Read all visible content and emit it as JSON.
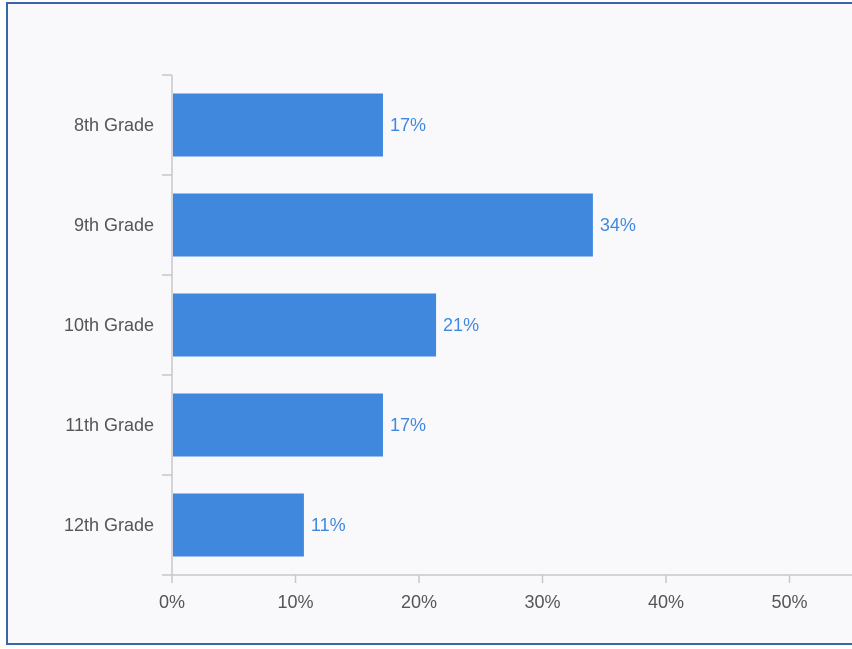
{
  "chart_data": {
    "type": "bar",
    "orientation": "horizontal",
    "categories": [
      "8th Grade",
      "9th Grade",
      "10th Grade",
      "11th Grade",
      "12th Grade"
    ],
    "values": [
      17,
      34,
      21.3,
      17,
      10.6
    ],
    "data_labels": [
      "17%",
      "34%",
      "21%",
      "17%",
      "11%"
    ],
    "x_ticks": [
      0,
      10,
      20,
      30,
      40,
      50
    ],
    "x_tick_labels": [
      "0%",
      "10%",
      "20%",
      "30%",
      "40%",
      "50%"
    ],
    "xlim": [
      0,
      55
    ],
    "title": "",
    "xlabel": "",
    "ylabel": "",
    "grid": false,
    "colors": {
      "bar": "#3f88de",
      "data_label": "#3f88de",
      "axis": "#c8c8cc",
      "text": "#555555"
    }
  }
}
